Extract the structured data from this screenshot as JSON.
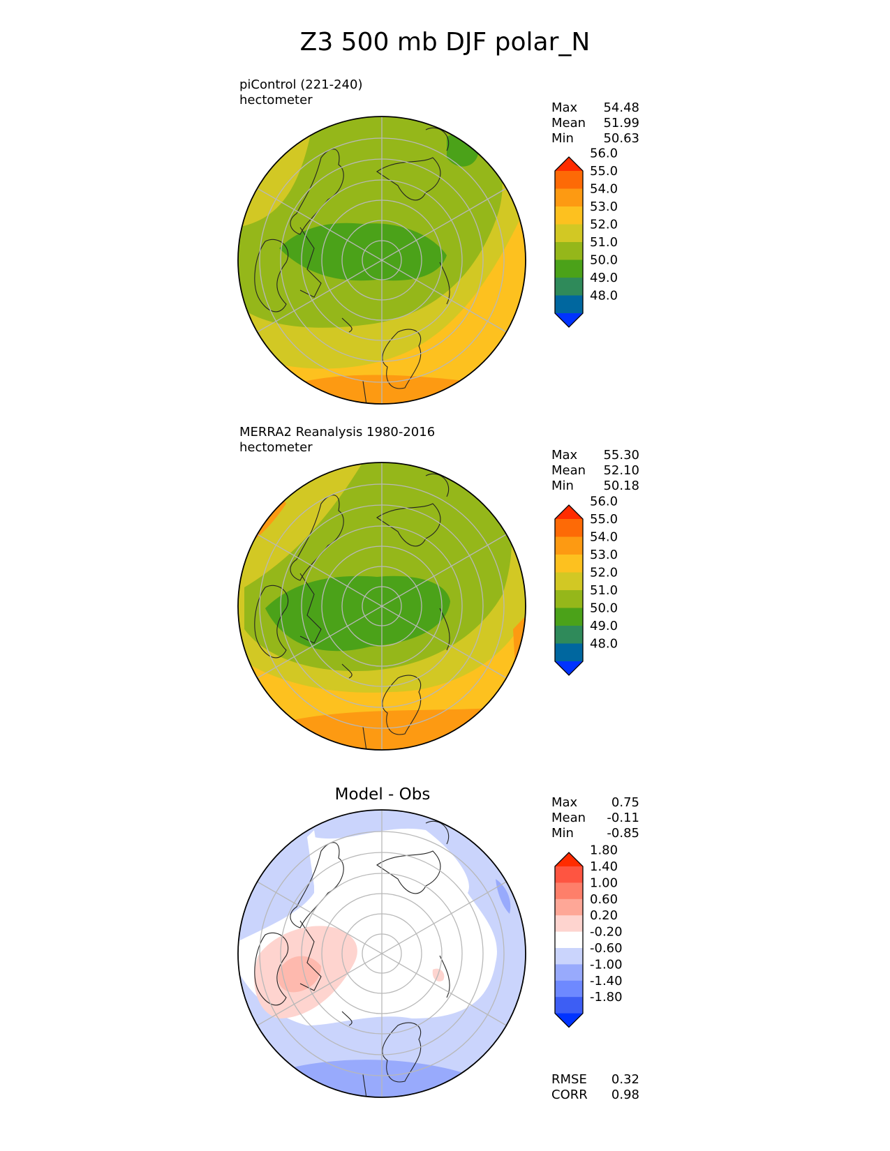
{
  "figure_title": "Z3 500 mb DJF polar_N",
  "panels": [
    {
      "label_line1": "piControl (221-240)",
      "label_line2": "hectometer",
      "panel_title": "",
      "stats": [
        {
          "name": "Max",
          "value": "54.48"
        },
        {
          "name": "Mean",
          "value": "51.99"
        },
        {
          "name": "Min",
          "value": "50.63"
        }
      ],
      "colorbar": {
        "colors": [
          "#0033ff",
          "#00679f",
          "#2f8a5a",
          "#4ba219",
          "#95b71a",
          "#d2c824",
          "#fdc11f",
          "#fd9a12",
          "#fd6a06",
          "#ff2c00"
        ],
        "tick_labels": [
          "48.0",
          "49.0",
          "50.0",
          "51.0",
          "52.0",
          "53.0",
          "54.0",
          "55.0",
          "56.0"
        ]
      }
    },
    {
      "label_line1": "MERRA2 Reanalysis 1980-2016",
      "label_line2": "hectometer",
      "panel_title": "",
      "stats": [
        {
          "name": "Max",
          "value": "55.30"
        },
        {
          "name": "Mean",
          "value": "52.10"
        },
        {
          "name": "Min",
          "value": "50.18"
        }
      ],
      "colorbar": {
        "colors": [
          "#0033ff",
          "#00679f",
          "#2f8a5a",
          "#4ba219",
          "#95b71a",
          "#d2c824",
          "#fdc11f",
          "#fd9a12",
          "#fd6a06",
          "#ff2c00"
        ],
        "tick_labels": [
          "48.0",
          "49.0",
          "50.0",
          "51.0",
          "52.0",
          "53.0",
          "54.0",
          "55.0",
          "56.0"
        ]
      }
    },
    {
      "label_line1": "",
      "label_line2": "",
      "panel_title": "Model - Obs",
      "stats": [
        {
          "name": "Max",
          "value": "0.75"
        },
        {
          "name": "Mean",
          "value": "-0.11"
        },
        {
          "name": "Min",
          "value": "-0.85"
        }
      ],
      "extra_stats": [
        {
          "name": "RMSE",
          "value": "0.32"
        },
        {
          "name": "CORR",
          "value": "0.98"
        }
      ],
      "colorbar": {
        "colors": [
          "#0033ff",
          "#3d5ef4",
          "#6e89ff",
          "#98aafc",
          "#cad4fc",
          "#ffffff",
          "#fed4cf",
          "#fea797",
          "#fe7f6a",
          "#fe5541",
          "#ff2c00"
        ],
        "tick_labels": [
          "-1.80",
          "-1.40",
          "-1.00",
          "-0.60",
          "-0.20",
          "0.20",
          "0.60",
          "1.00",
          "1.40",
          "1.80"
        ]
      }
    }
  ]
}
